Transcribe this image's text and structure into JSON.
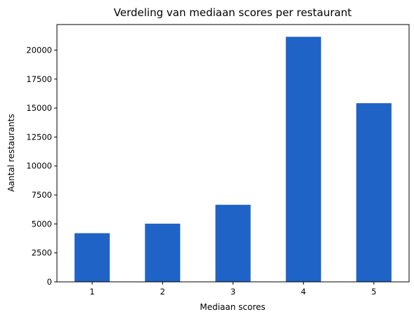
{
  "chart_data": {
    "type": "bar",
    "title": "Verdeling van mediaan scores per restaurant",
    "xlabel": "Mediaan scores",
    "ylabel": "Aantal restaurants",
    "categories": [
      "1",
      "2",
      "3",
      "4",
      "5"
    ],
    "values": [
      4200,
      5020,
      6650,
      21150,
      15420
    ],
    "ylim": [
      0,
      22207
    ],
    "yticks": [
      0,
      2500,
      5000,
      7500,
      10000,
      12500,
      15000,
      17500,
      20000
    ],
    "grid": false,
    "bar_color": "#1f63c6"
  }
}
